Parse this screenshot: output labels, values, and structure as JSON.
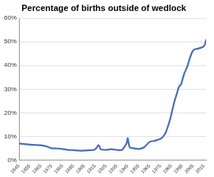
{
  "chart_data": {
    "type": "line",
    "title": "Percentage of births outside of wedlock",
    "x": [
      1845,
      1850,
      1855,
      1860,
      1865,
      1870,
      1875,
      1880,
      1885,
      1890,
      1895,
      1900,
      1905,
      1910,
      1914,
      1916,
      1918,
      1919,
      1920,
      1925,
      1930,
      1935,
      1938,
      1940,
      1942,
      1944,
      1945,
      1946,
      1947,
      1950,
      1955,
      1960,
      1965,
      1970,
      1975,
      1978,
      1980,
      1983,
      1985,
      1987,
      1988,
      1990,
      1992,
      1994,
      1995,
      1997,
      1999,
      2000,
      2002,
      2004,
      2006,
      2010,
      2014,
      2015,
      2016,
      2017
    ],
    "values": [
      7.0,
      6.8,
      6.5,
      6.4,
      6.3,
      5.8,
      5.0,
      4.9,
      4.7,
      4.3,
      4.2,
      4.0,
      4.0,
      4.2,
      4.3,
      5.0,
      6.3,
      5.8,
      4.6,
      4.3,
      4.6,
      4.3,
      4.2,
      4.4,
      5.6,
      7.3,
      9.3,
      6.6,
      5.3,
      5.0,
      4.7,
      5.4,
      7.7,
      8.2,
      9.0,
      10.2,
      11.8,
      15.8,
      19.2,
      23.2,
      25.0,
      27.9,
      31.0,
      32.0,
      33.6,
      36.7,
      38.8,
      40.0,
      43.0,
      45.5,
      46.8,
      47.2,
      47.8,
      48.2,
      49.0,
      51.0
    ],
    "color": "#4a6fb5",
    "xlim": [
      1845,
      2017
    ],
    "xticks": [
      1845,
      1855,
      1865,
      1875,
      1885,
      1895,
      1905,
      1915,
      1925,
      1935,
      1945,
      1955,
      1965,
      1975,
      1985,
      1995,
      2005,
      2015
    ],
    "ylim": [
      0,
      60
    ],
    "yticks": [
      {
        "value": 0,
        "label": "0%"
      },
      {
        "value": 10,
        "label": "10%"
      },
      {
        "value": 20,
        "label": "20%"
      },
      {
        "value": 30,
        "label": "30%"
      },
      {
        "value": 40,
        "label": "40%"
      },
      {
        "value": 50,
        "label": "50%"
      },
      {
        "value": 60,
        "label": "60%"
      }
    ],
    "grid": true
  }
}
